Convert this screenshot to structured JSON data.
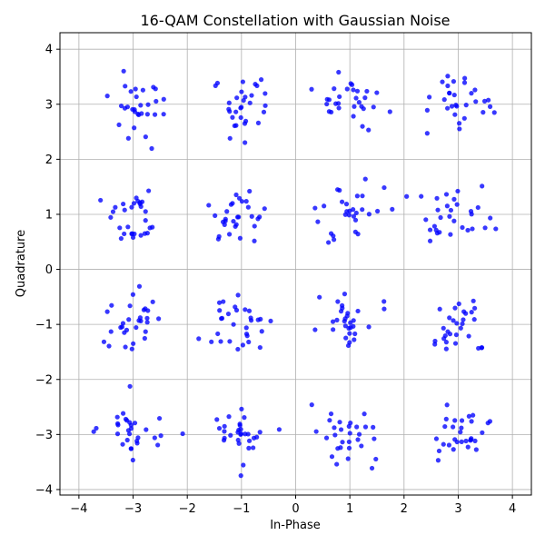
{
  "chart_data": {
    "type": "scatter",
    "title": "16-QAM Constellation with Gaussian Noise",
    "xlabel": "In-Phase",
    "ylabel": "Quadrature",
    "xlim": [
      -4.35,
      4.35
    ],
    "ylim": [
      -4.1,
      4.3
    ],
    "xticks": [
      -4,
      -3,
      -2,
      -1,
      0,
      1,
      2,
      3,
      4
    ],
    "yticks": [
      -4,
      -3,
      -2,
      -1,
      0,
      1,
      2,
      3,
      4
    ],
    "grid": true,
    "marker_color": "#0000ff",
    "constellation_points": [
      {
        "i": -3,
        "q": 3
      },
      {
        "i": -1,
        "q": 3
      },
      {
        "i": 1,
        "q": 3
      },
      {
        "i": 3,
        "q": 3
      },
      {
        "i": -3,
        "q": 1
      },
      {
        "i": -1,
        "q": 1
      },
      {
        "i": 1,
        "q": 1
      },
      {
        "i": 3,
        "q": 1
      },
      {
        "i": -3,
        "q": -1
      },
      {
        "i": -1,
        "q": -1
      },
      {
        "i": 1,
        "q": -1
      },
      {
        "i": 3,
        "q": -1
      },
      {
        "i": -3,
        "q": -3
      },
      {
        "i": -1,
        "q": -3
      },
      {
        "i": 1,
        "q": -3
      },
      {
        "i": 3,
        "q": -3
      }
    ],
    "noise_std": 0.3,
    "points_per_symbol": 30
  }
}
